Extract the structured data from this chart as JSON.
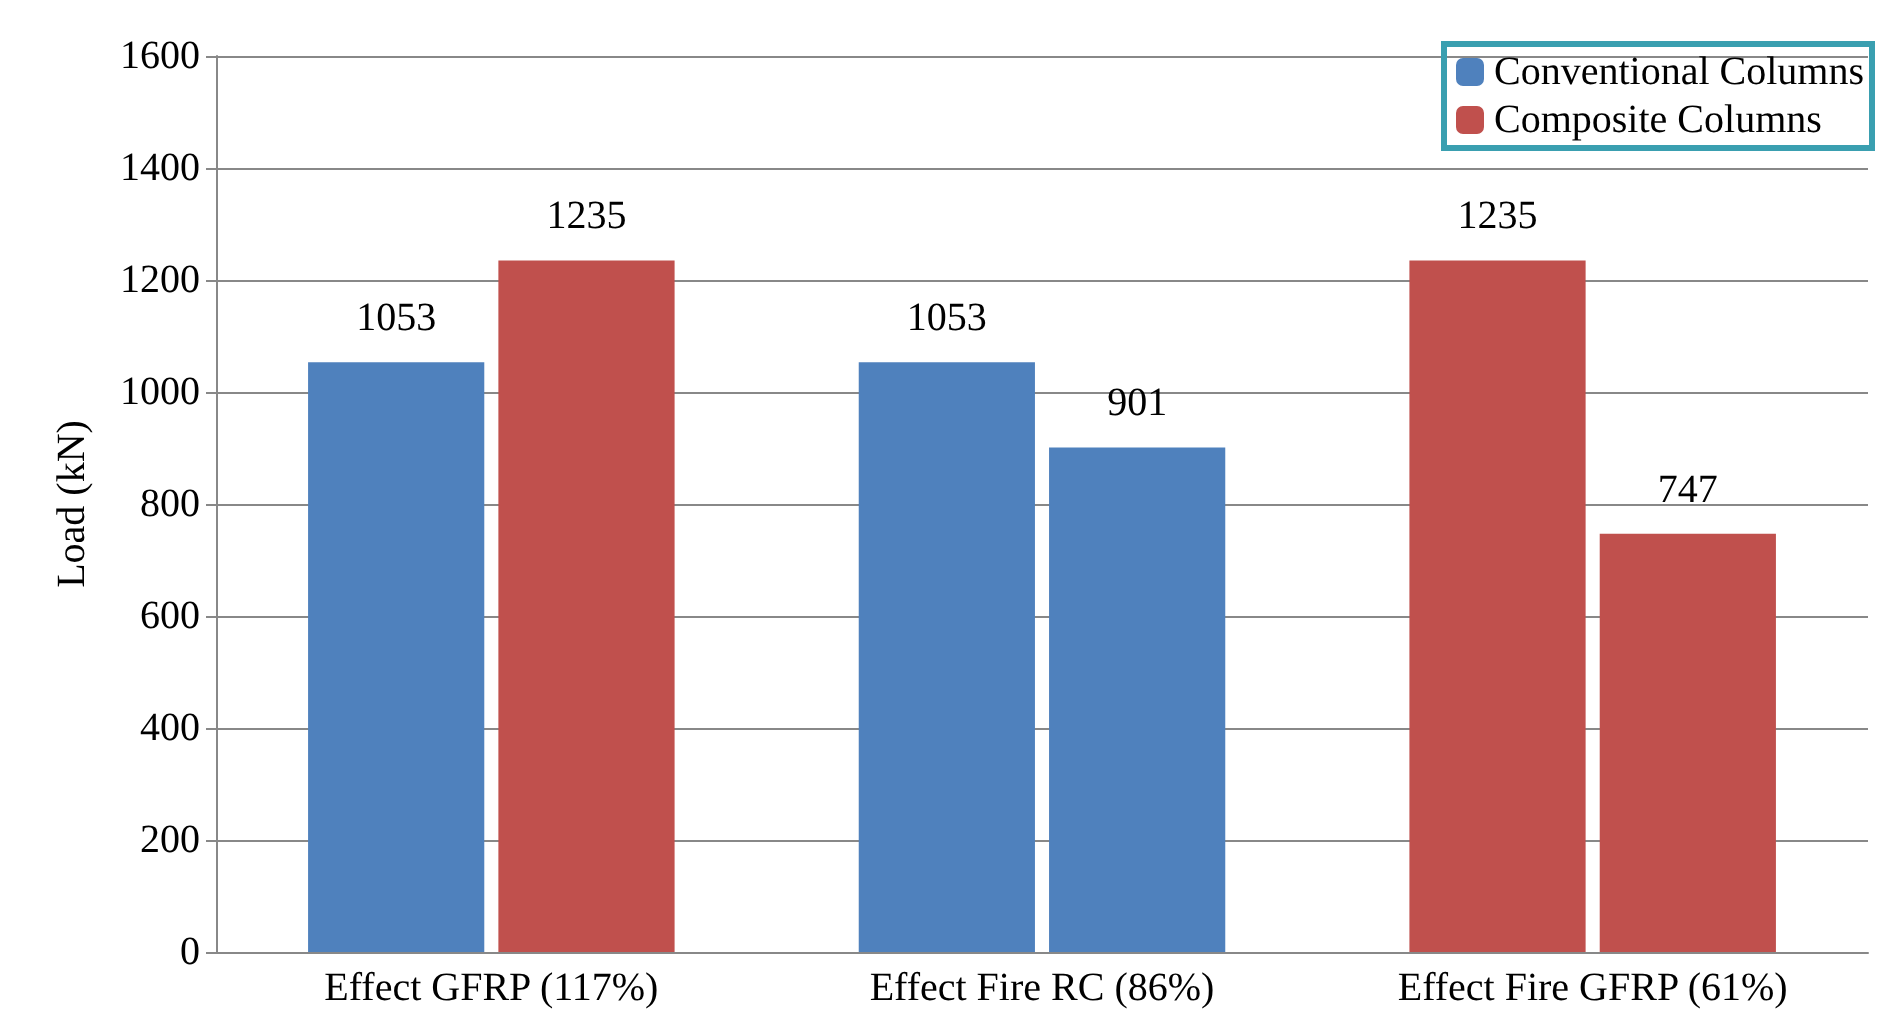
{
  "chart_data": {
    "type": "bar",
    "ylabel": "Load (kN)",
    "categories": [
      "Effect GFRP (117%)",
      "Effect Fire RC (86%)",
      "Effect Fire GFRP (61%)"
    ],
    "series": [
      {
        "name": "Conventional Columns",
        "color": "#4f81bd",
        "values": [
          1053,
          1053,
          1235
        ],
        "colors": [
          "#4f81bd",
          "#4f81bd",
          "#c0504d"
        ]
      },
      {
        "name": "Composite Columns",
        "color": "#c0504d",
        "values": [
          1235,
          901,
          747
        ],
        "colors": [
          "#c0504d",
          "#4f81bd",
          "#c0504d"
        ]
      }
    ],
    "ylim": [
      0,
      1600
    ],
    "yticks": [
      0,
      200,
      400,
      600,
      800,
      1000,
      1200,
      1400,
      1600
    ],
    "grid": "y",
    "legend": "top right",
    "data_labels": true
  }
}
